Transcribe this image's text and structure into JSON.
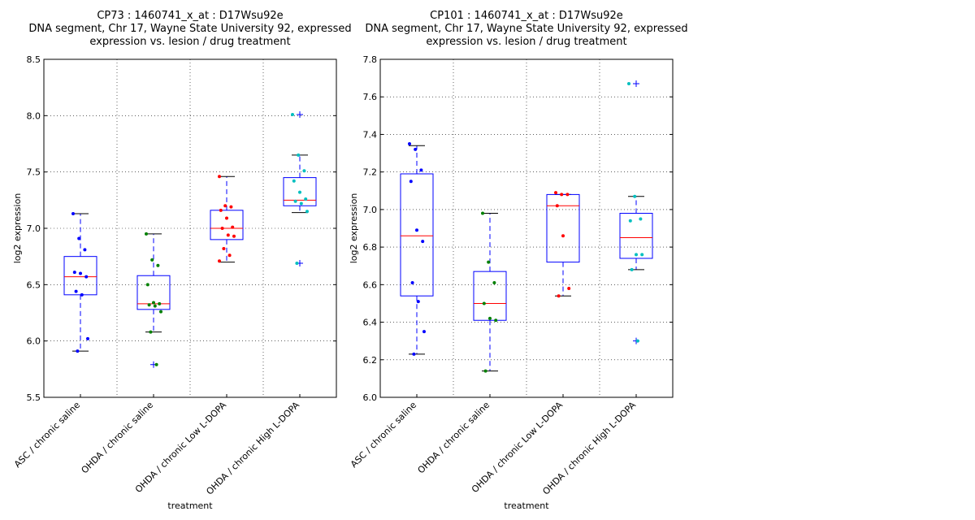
{
  "chart_data": [
    {
      "type": "box",
      "title": [
        "CP73 : 1460741_x_at : D17Wsu92e",
        "DNA segment, Chr 17, Wayne State University 92, expressed",
        "expression vs. lesion / drug treatment"
      ],
      "xlabel": "treatment",
      "ylabel": "log2 expression",
      "ylim": [
        5.5,
        8.5
      ],
      "yticks": [
        "5.5",
        "6.0",
        "6.5",
        "7.0",
        "7.5",
        "8.0",
        "8.5"
      ],
      "grid": true,
      "categories": [
        "ASC / chronic saline",
        "OHDA / chronic saline",
        "OHDA / chronic Low L-DOPA",
        "OHDA / chronic High L-DOPA"
      ],
      "colors": [
        "#0000ff",
        "#008000",
        "#ff0000",
        "#00bfbf"
      ],
      "boxes": [
        {
          "q1": 6.41,
          "median": 6.57,
          "q3": 6.75,
          "whislo": 5.91,
          "whishi": 7.13,
          "outliers": []
        },
        {
          "q1": 6.28,
          "median": 6.33,
          "q3": 6.58,
          "whislo": 6.08,
          "whishi": 6.95,
          "outliers": [
            5.79
          ]
        },
        {
          "q1": 6.9,
          "median": 7.0,
          "q3": 7.16,
          "whislo": 6.7,
          "whishi": 7.46,
          "outliers": []
        },
        {
          "q1": 7.2,
          "median": 7.25,
          "q3": 7.45,
          "whislo": 7.14,
          "whishi": 7.65,
          "outliers": [
            8.01,
            6.69
          ]
        }
      ],
      "points": [
        [
          7.13,
          6.91,
          6.81,
          6.61,
          6.6,
          6.57,
          6.44,
          6.41,
          6.02,
          5.91
        ],
        [
          6.95,
          6.72,
          6.67,
          6.5,
          6.34,
          6.33,
          6.32,
          6.31,
          6.26,
          6.08,
          5.79
        ],
        [
          7.46,
          7.2,
          7.19,
          7.16,
          7.09,
          7.01,
          7.0,
          6.94,
          6.93,
          6.82,
          6.76,
          6.71
        ],
        [
          8.01,
          7.65,
          7.51,
          7.42,
          7.32,
          7.26,
          7.24,
          7.22,
          7.15,
          6.69
        ]
      ]
    },
    {
      "type": "box",
      "title": [
        "CP101 : 1460741_x_at : D17Wsu92e",
        "DNA segment, Chr 17, Wayne State University 92, expressed",
        "expression vs. lesion / drug treatment"
      ],
      "xlabel": "treatment",
      "ylabel": "log2 expression",
      "ylim": [
        6.0,
        7.8
      ],
      "yticks": [
        "6.0",
        "6.2",
        "6.4",
        "6.6",
        "6.8",
        "7.0",
        "7.2",
        "7.4",
        "7.6",
        "7.8"
      ],
      "grid": true,
      "categories": [
        "ASC / chronic saline",
        "OHDA / chronic saline",
        "OHDA / chronic Low L-DOPA",
        "OHDA / chronic High L-DOPA"
      ],
      "colors": [
        "#0000ff",
        "#008000",
        "#ff0000",
        "#00bfbf"
      ],
      "boxes": [
        {
          "q1": 6.54,
          "median": 6.86,
          "q3": 7.19,
          "whislo": 6.23,
          "whishi": 7.34,
          "outliers": []
        },
        {
          "q1": 6.41,
          "median": 6.5,
          "q3": 6.67,
          "whislo": 6.14,
          "whishi": 6.98,
          "outliers": []
        },
        {
          "q1": 6.72,
          "median": 7.02,
          "q3": 7.08,
          "whislo": 6.54,
          "whishi": 7.08,
          "outliers": []
        },
        {
          "q1": 6.74,
          "median": 6.85,
          "q3": 6.98,
          "whislo": 6.68,
          "whishi": 7.07,
          "outliers": [
            7.67,
            6.3
          ]
        }
      ],
      "points": [
        [
          7.35,
          7.32,
          7.21,
          7.15,
          6.89,
          6.83,
          6.61,
          6.51,
          6.35,
          6.23
        ],
        [
          6.98,
          6.72,
          6.61,
          6.5,
          6.42,
          6.41,
          6.14
        ],
        [
          7.09,
          7.08,
          7.08,
          7.02,
          6.86,
          6.58,
          6.54
        ],
        [
          7.67,
          7.07,
          6.95,
          6.94,
          6.76,
          6.76,
          6.68,
          6.3
        ]
      ]
    }
  ]
}
